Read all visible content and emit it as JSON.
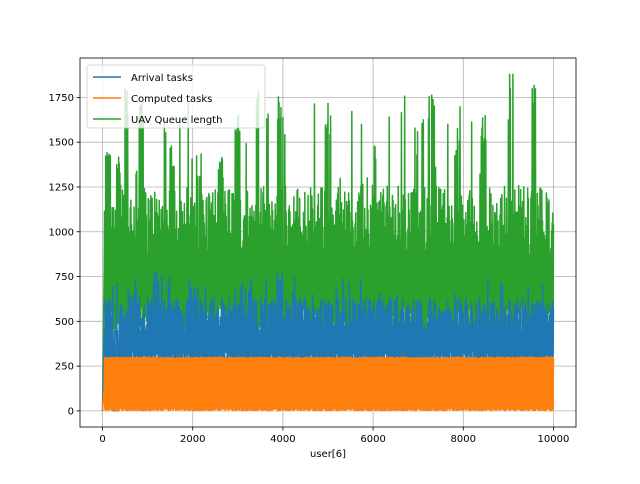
{
  "chart_data": {
    "type": "line",
    "title": "",
    "xlabel": "user[6]",
    "ylabel": "",
    "xlim": [
      -500,
      10500
    ],
    "ylim": [
      -90,
      1970
    ],
    "x_ticks": [
      0,
      2000,
      4000,
      6000,
      8000,
      10000
    ],
    "y_ticks": [
      0,
      250,
      500,
      750,
      1000,
      1250,
      1500,
      1750
    ],
    "grid": true,
    "legend_position": "upper-left",
    "n_points": 10000,
    "series": [
      {
        "name": "Arrival tasks",
        "color": "#1f77b4",
        "band_low": 280,
        "band_high": 600,
        "start_value": 0,
        "peak_value": 800,
        "peak_points": [
          [
            300,
            0
          ],
          [
            1180,
            780
          ],
          [
            2000,
            690
          ],
          [
            3300,
            700
          ],
          [
            3930,
            800
          ],
          [
            5050,
            620
          ],
          [
            7500,
            570
          ],
          [
            8900,
            610
          ],
          [
            9700,
            620
          ],
          [
            10000,
            590
          ]
        ]
      },
      {
        "name": "Computed tasks",
        "color": "#ff7f0e",
        "band_low": 0,
        "band_high": 300,
        "cap_value": 300,
        "start_value": 0
      },
      {
        "name": "UAV Queue length",
        "color": "#2ca02c",
        "band_low": 500,
        "band_high": 1200,
        "start_value": 0,
        "peak_value": 1880,
        "peak_points": [
          [
            60,
            1010
          ],
          [
            120,
            1460
          ],
          [
            330,
            1430
          ],
          [
            520,
            1800
          ],
          [
            860,
            1820
          ],
          [
            1550,
            1500
          ],
          [
            2140,
            1450
          ],
          [
            2620,
            1420
          ],
          [
            2990,
            1690
          ],
          [
            3420,
            1800
          ],
          [
            3900,
            1760
          ],
          [
            5000,
            1710
          ],
          [
            6020,
            1500
          ],
          [
            6680,
            1780
          ],
          [
            7300,
            1850
          ],
          [
            7860,
            1580
          ],
          [
            8450,
            1650
          ],
          [
            9050,
            1880
          ],
          [
            9560,
            1830
          ],
          [
            10000,
            1110
          ]
        ]
      }
    ]
  }
}
